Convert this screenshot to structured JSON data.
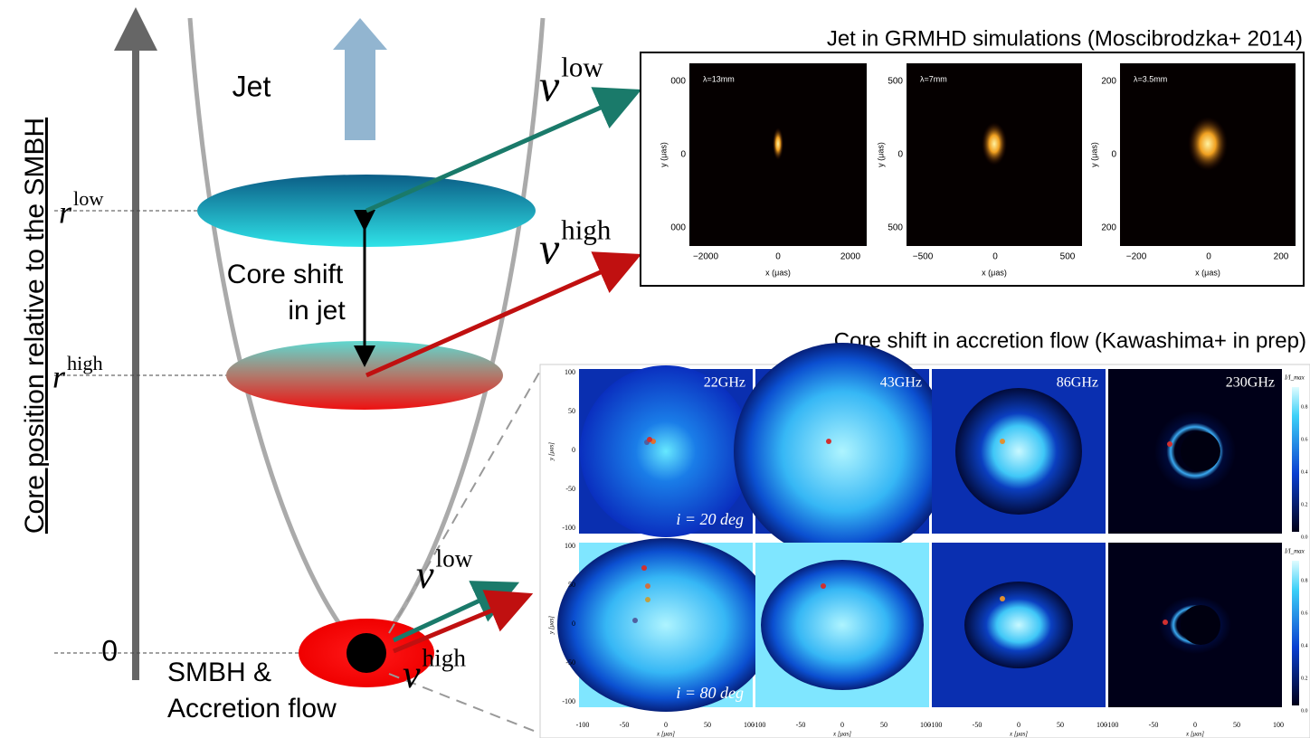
{
  "axis_label": "Core position relative to the SMBH",
  "jet_label": "Jet",
  "radius_marks": [
    {
      "symbol": "r",
      "sup": "low"
    },
    {
      "symbol": "r",
      "sup": "high"
    },
    {
      "symbol": "0"
    }
  ],
  "core_shift_label": [
    "Core shift",
    "in jet"
  ],
  "frequency_labels": [
    {
      "symbol": "ν",
      "sup": "low"
    },
    {
      "symbol": "ν",
      "sup": "high"
    },
    {
      "symbol": "ν",
      "sup": "low"
    },
    {
      "symbol": "ν",
      "sup": "high"
    }
  ],
  "smbh_label": [
    "SMBH &",
    "Accretion flow"
  ],
  "grmhd": {
    "title": "Jet in GRMHD simulations (Moscibrodzka+ 2014)",
    "xlabel": "x (μas)",
    "ylabel": "y (μas)",
    "panels": [
      {
        "label": "λ=13mm",
        "yticks": [
          "000",
          "0",
          "000"
        ],
        "xticks": [
          "−2000",
          "0",
          "2000"
        ]
      },
      {
        "label": "λ=7mm",
        "yticks": [
          "500",
          "0",
          "500"
        ],
        "xticks": [
          "−500",
          "0",
          "500"
        ]
      },
      {
        "label": "λ=3.5mm",
        "yticks": [
          "200",
          "0",
          "200"
        ],
        "xticks": [
          "−200",
          "0",
          "200"
        ]
      }
    ]
  },
  "accretion": {
    "title": "Core shift in accretion flow (Kawashima+ in prep)",
    "frequencies": [
      "22GHz",
      "43GHz",
      "86GHz",
      "230GHz"
    ],
    "inclinations": [
      "i = 20 deg",
      "i = 80 deg"
    ],
    "yticks": [
      "100",
      "50",
      "0",
      "-50",
      "-100"
    ],
    "xticks": [
      "-100",
      "-50",
      "0",
      "50",
      "100"
    ],
    "ylabel": "y [μas]",
    "xlabel": "x [μas]",
    "colorbar_label": "I/I_max",
    "colorbar_ticks": [
      "0.8",
      "0.6",
      "0.4",
      "0.2",
      "0.0"
    ]
  }
}
